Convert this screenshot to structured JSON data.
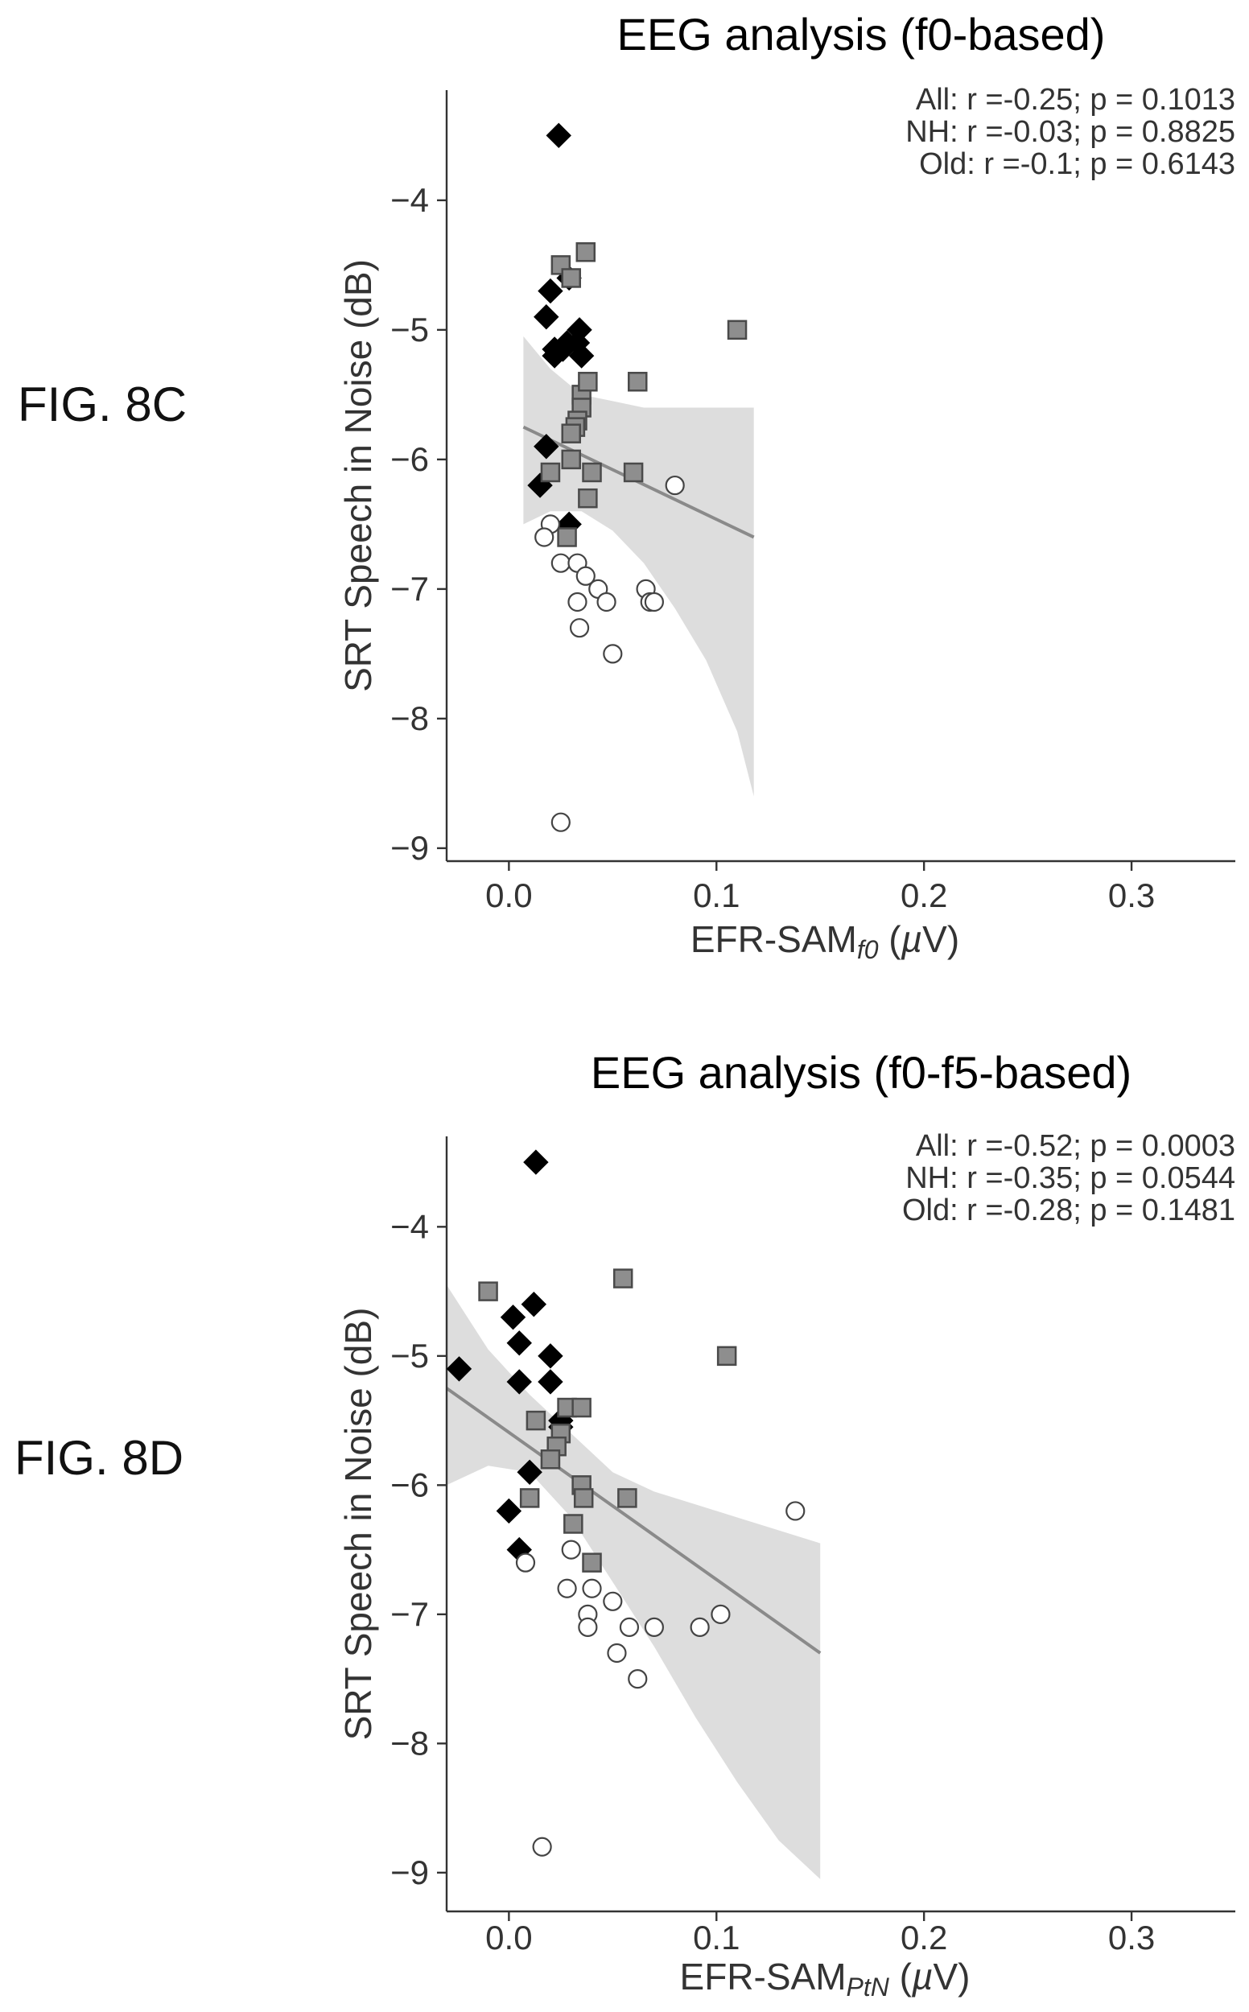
{
  "figure_labels": {
    "c": "FIG. 8C",
    "d": "FIG. 8D"
  },
  "colors": {
    "group_old": "#000000",
    "group_nh": "#8e8e8e",
    "group_young": "#ffffff",
    "ci_band": "#d4d4d4",
    "fit_line": "#8a8a8a"
  },
  "chart_data": [
    {
      "type": "scatter",
      "title": "EEG analysis (f0-based)",
      "xlabel": {
        "main": "EFR-SAM",
        "sub": "f0",
        "unit_pre": "(",
        "unit_mu": "µ",
        "unit_post": "V)"
      },
      "ylabel": "SRT Speech in Noise (dB)",
      "xlim": [
        -0.03,
        0.35
      ],
      "ylim": [
        -9.1,
        -3.15
      ],
      "xticks": [
        0.0,
        0.1,
        0.2,
        0.3
      ],
      "xtick_labels": [
        "0.0",
        "0.1",
        "0.2",
        "0.3"
      ],
      "yticks": [
        -9,
        -8,
        -7,
        -6,
        -5,
        -4
      ],
      "ytick_labels": [
        "−9",
        "−8",
        "−7",
        "−6",
        "−5",
        "−4"
      ],
      "grid": false,
      "annotations": [
        "All:  r =-0.25; p = 0.1013",
        "NH: r =-0.03; p = 0.8825",
        "Old:  r =-0.1; p = 0.6143"
      ],
      "fit": {
        "x": [
          0.007,
          0.118
        ],
        "y": [
          -5.75,
          -6.6
        ]
      },
      "ci_band": {
        "x": [
          0.007,
          0.02,
          0.035,
          0.05,
          0.065,
          0.08,
          0.095,
          0.11,
          0.118
        ],
        "upper": [
          -5.05,
          -5.3,
          -5.5,
          -5.55,
          -5.6,
          -5.6,
          -5.6,
          -5.6,
          -5.6
        ],
        "lower": [
          -6.5,
          -6.4,
          -6.4,
          -6.55,
          -6.8,
          -7.15,
          -7.55,
          -8.1,
          -8.6
        ]
      },
      "series": [
        {
          "marker": "diamond",
          "x": [
            0.024,
            0.02,
            0.029,
            0.018,
            0.022,
            0.028,
            0.034,
            0.033,
            0.022,
            0.026,
            0.035,
            0.018,
            0.015,
            0.029
          ],
          "y": [
            -3.5,
            -4.7,
            -4.6,
            -4.9,
            -5.2,
            -5.1,
            -5.0,
            -5.1,
            -5.15,
            -5.15,
            -5.2,
            -5.9,
            -6.2,
            -6.5
          ]
        },
        {
          "marker": "square",
          "x": [
            0.025,
            0.037,
            0.03,
            0.11,
            0.035,
            0.038,
            0.035,
            0.062,
            0.033,
            0.032,
            0.03,
            0.02,
            0.03,
            0.04,
            0.06,
            0.038,
            0.028
          ],
          "y": [
            -4.5,
            -4.4,
            -4.6,
            -5.0,
            -5.5,
            -5.4,
            -5.6,
            -5.4,
            -5.7,
            -5.75,
            -5.8,
            -6.1,
            -6.0,
            -6.1,
            -6.1,
            -6.3,
            -6.6
          ]
        },
        {
          "marker": "circle",
          "x": [
            0.08,
            0.02,
            0.017,
            0.025,
            0.033,
            0.037,
            0.043,
            0.066,
            0.068,
            0.07,
            0.033,
            0.047,
            0.034,
            0.05,
            0.025
          ],
          "y": [
            -6.2,
            -6.5,
            -6.6,
            -6.8,
            -6.8,
            -6.9,
            -7.0,
            -7.0,
            -7.1,
            -7.1,
            -7.1,
            -7.1,
            -7.3,
            -7.5,
            -8.8
          ]
        }
      ]
    },
    {
      "type": "scatter",
      "title": "EEG analysis (f0-f5-based)",
      "xlabel": {
        "main": "EFR-SAM",
        "sub": "PtN",
        "unit_pre": "(",
        "unit_mu": "µ",
        "unit_post": "V)"
      },
      "ylabel": "SRT Speech in Noise (dB)",
      "xlim": [
        -0.03,
        0.35
      ],
      "ylim": [
        -9.3,
        -3.3
      ],
      "xticks": [
        0.0,
        0.1,
        0.2,
        0.3
      ],
      "xtick_labels": [
        "0.0",
        "0.1",
        "0.2",
        "0.3"
      ],
      "yticks": [
        -9,
        -8,
        -7,
        -6,
        -5,
        -4
      ],
      "ytick_labels": [
        "−9",
        "−8",
        "−7",
        "−6",
        "−5",
        "−4"
      ],
      "grid": false,
      "annotations": [
        "All:  r =-0.52; p = 0.0003",
        "NH: r =-0.35; p = 0.0544",
        "Old: r =-0.28; p = 0.1481"
      ],
      "fit": {
        "x": [
          -0.03,
          0.15
        ],
        "y": [
          -5.25,
          -7.3
        ]
      },
      "ci_band": {
        "x": [
          -0.03,
          -0.01,
          0.01,
          0.03,
          0.05,
          0.07,
          0.09,
          0.11,
          0.13,
          0.15
        ],
        "upper": [
          -4.45,
          -4.95,
          -5.3,
          -5.6,
          -5.9,
          -6.05,
          -6.15,
          -6.25,
          -6.35,
          -6.45
        ],
        "lower": [
          -6.0,
          -5.85,
          -5.9,
          -6.25,
          -6.75,
          -7.25,
          -7.8,
          -8.3,
          -8.75,
          -9.05
        ]
      },
      "series": [
        {
          "marker": "diamond",
          "x": [
            0.013,
            0.012,
            0.002,
            -0.024,
            0.005,
            0.02,
            0.005,
            0.02,
            0.025,
            0.025,
            0.01,
            0.0,
            0.005
          ],
          "y": [
            -3.5,
            -4.6,
            -4.7,
            -5.1,
            -4.9,
            -5.0,
            -5.2,
            -5.2,
            -5.5,
            -5.55,
            -5.9,
            -6.2,
            -6.5
          ]
        },
        {
          "marker": "square",
          "x": [
            -0.01,
            0.055,
            0.105,
            0.013,
            0.028,
            0.035,
            0.025,
            0.023,
            0.02,
            0.035,
            0.036,
            0.057,
            0.01,
            0.031,
            0.04
          ],
          "y": [
            -4.5,
            -4.4,
            -5.0,
            -5.5,
            -5.4,
            -5.4,
            -5.6,
            -5.7,
            -5.8,
            -6.0,
            -6.1,
            -6.1,
            -6.1,
            -6.3,
            -6.6
          ]
        },
        {
          "marker": "circle",
          "x": [
            0.138,
            0.03,
            0.008,
            0.028,
            0.04,
            0.05,
            0.038,
            0.038,
            0.058,
            0.07,
            0.092,
            0.102,
            0.052,
            0.062,
            0.016
          ],
          "y": [
            -6.2,
            -6.5,
            -6.6,
            -6.8,
            -6.8,
            -6.9,
            -7.0,
            -7.1,
            -7.1,
            -7.1,
            -7.1,
            -7.0,
            -7.3,
            -7.5,
            -8.8
          ]
        }
      ]
    }
  ]
}
